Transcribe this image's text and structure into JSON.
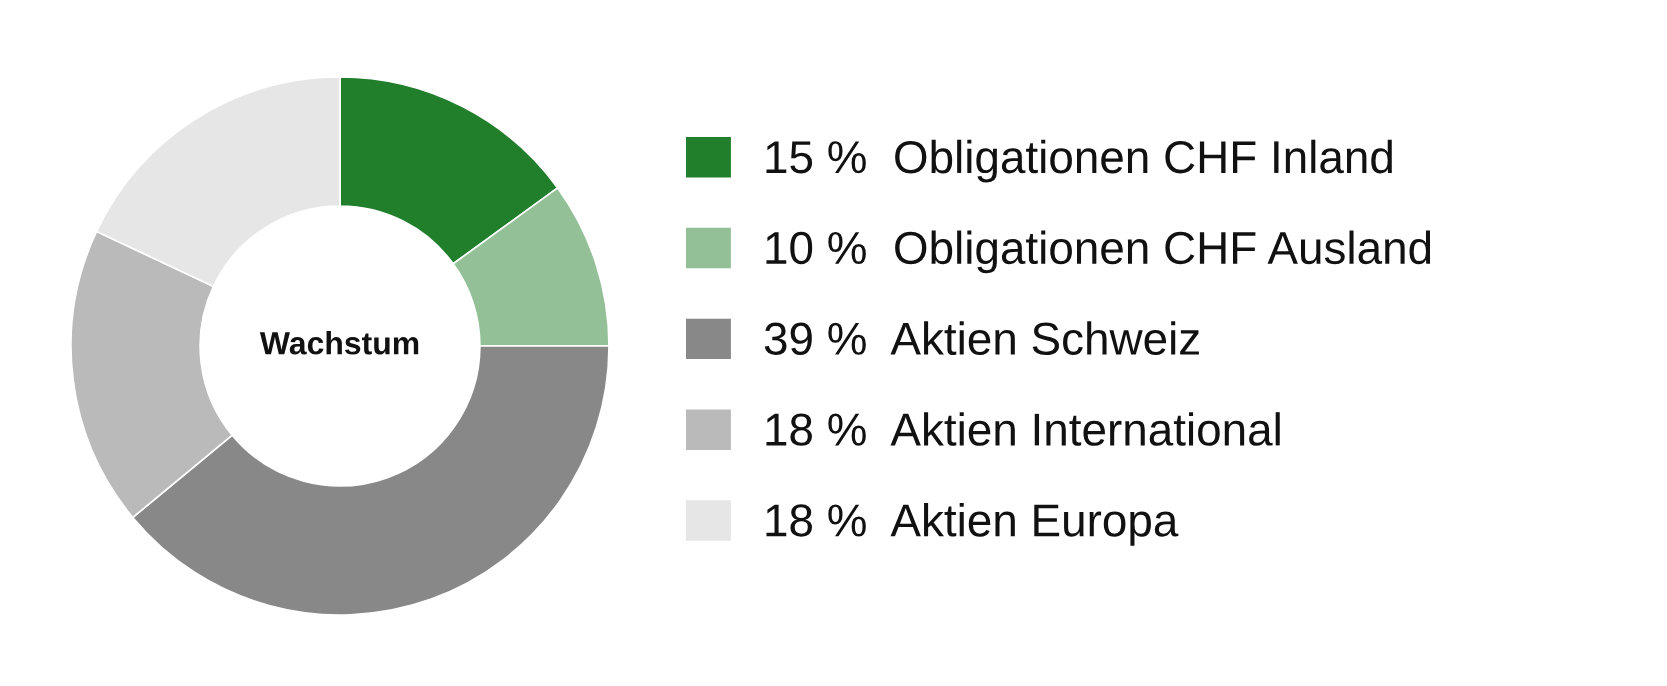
{
  "chart_data": {
    "type": "donut",
    "title": "Wachstum",
    "categories": [
      "Obligationen CHF Inland",
      "Obligationen CHF Ausland",
      "Aktien Schweiz",
      "Aktien International",
      "Aktien Europa"
    ],
    "values": [
      15,
      10,
      39,
      18,
      18
    ],
    "value_labels": [
      "15 %",
      "10 %",
      "39 %",
      "18 %",
      "18 %"
    ],
    "colors": [
      "#217f2b",
      "#93c097",
      "#878887",
      "#b9bab9",
      "#e6e6e6"
    ],
    "legend": "right"
  }
}
